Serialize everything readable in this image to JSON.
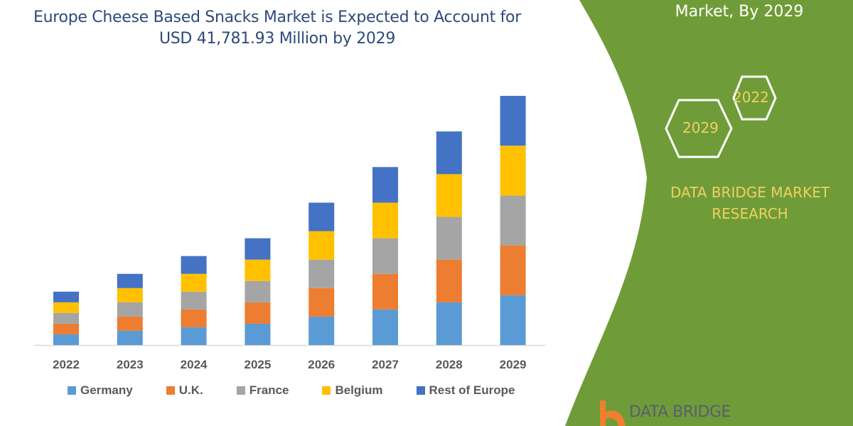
{
  "title_line1": "Europe Cheese Based Snacks Market is Expected to Account for",
  "title_line2": "USD 41,781.93 Million by 2029",
  "side_panel": {
    "title": "Market, By 2029",
    "hex_2022": "2022",
    "hex_2029": "2029",
    "brand_line1": "DATA BRIDGE MARKET",
    "brand_line2": "RESEARCH",
    "logo_text": "DATA BRIDGE",
    "color": "#6f9c38",
    "accent": "#f0d060"
  },
  "chart_data": {
    "type": "bar",
    "stacked": true,
    "title": "Europe Cheese Based Snacks Market is Expected to Account for USD 41,781.93 Million by 2029",
    "xlabel": "",
    "ylabel": "",
    "y_axis_shown": false,
    "grid": false,
    "legend_position": "bottom",
    "categories": [
      "2022",
      "2023",
      "2024",
      "2025",
      "2026",
      "2027",
      "2028",
      "2029"
    ],
    "series": [
      {
        "name": "Germany",
        "color": "#5b9bd5",
        "values": [
          15,
          20,
          25,
          30,
          40,
          50,
          60,
          70
        ]
      },
      {
        "name": "U.K.",
        "color": "#ed7d31",
        "values": [
          15,
          20,
          25,
          30,
          40,
          50,
          60,
          70
        ]
      },
      {
        "name": "France",
        "color": "#a5a5a5",
        "values": [
          15,
          20,
          25,
          30,
          40,
          50,
          60,
          70
        ]
      },
      {
        "name": "Belgium",
        "color": "#ffc000",
        "values": [
          15,
          20,
          25,
          30,
          40,
          50,
          60,
          70
        ]
      },
      {
        "name": "Rest of Europe",
        "color": "#4472c4",
        "values": [
          15,
          20,
          25,
          30,
          40,
          50,
          60,
          70
        ]
      }
    ]
  }
}
